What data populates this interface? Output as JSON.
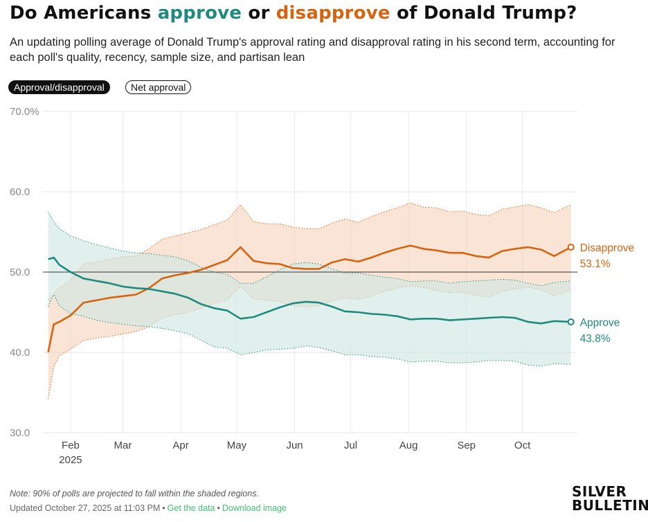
{
  "header": {
    "title_parts": {
      "part1": "Do Americans ",
      "approve": "approve",
      "part2": " or ",
      "disapprove": "disapprove",
      "part3": " of Donald Trump?"
    },
    "subtitle": "An updating polling average of Donald Trump's approval rating and disapproval rating in his second term, accounting for each poll's quality, recency, sample size, and partisan lean"
  },
  "toggles": {
    "approval_label": "Approval/disapproval",
    "net_label": "Net approval",
    "active": "approval"
  },
  "colors": {
    "approve": "#1f8a7e",
    "approve_band": "#cfe6e2",
    "disapprove": "#d7630f",
    "disapprove_band": "#f6d3bb"
  },
  "chart_data": {
    "type": "line",
    "x_unit": "date",
    "xlim": [
      "2025-01-20",
      "2025-10-27"
    ],
    "ylim": [
      30,
      70
    ],
    "y_ticks": [
      30,
      40,
      50,
      60,
      70
    ],
    "y_tick_labels": [
      "30.0",
      "40.0",
      "50.0",
      "60.0",
      "70.0%"
    ],
    "reference_line": 50,
    "grid": true,
    "x_ticks": [
      {
        "date": "2025-02-01",
        "label": "Feb",
        "sublabel": "2025"
      },
      {
        "date": "2025-03-01",
        "label": "Mar"
      },
      {
        "date": "2025-04-01",
        "label": "Apr"
      },
      {
        "date": "2025-05-01",
        "label": "May"
      },
      {
        "date": "2025-06-01",
        "label": "Jun"
      },
      {
        "date": "2025-07-01",
        "label": "Jul"
      },
      {
        "date": "2025-08-01",
        "label": "Aug"
      },
      {
        "date": "2025-09-01",
        "label": "Sep"
      },
      {
        "date": "2025-10-01",
        "label": "Oct"
      }
    ],
    "series": [
      {
        "name": "Approve",
        "end_label": "Approve",
        "end_value_label": "43.8%",
        "x": [
          "2025-01-20",
          "2025-01-23",
          "2025-01-26",
          "2025-02-01",
          "2025-02-08",
          "2025-02-15",
          "2025-02-22",
          "2025-03-01",
          "2025-03-08",
          "2025-03-15",
          "2025-03-22",
          "2025-03-29",
          "2025-04-05",
          "2025-04-12",
          "2025-04-19",
          "2025-04-26",
          "2025-05-03",
          "2025-05-10",
          "2025-05-17",
          "2025-05-24",
          "2025-05-31",
          "2025-06-07",
          "2025-06-14",
          "2025-06-21",
          "2025-06-28",
          "2025-07-05",
          "2025-07-12",
          "2025-07-19",
          "2025-07-26",
          "2025-08-02",
          "2025-08-09",
          "2025-08-16",
          "2025-08-23",
          "2025-08-30",
          "2025-09-06",
          "2025-09-13",
          "2025-09-20",
          "2025-09-27",
          "2025-10-04",
          "2025-10-11",
          "2025-10-18",
          "2025-10-27"
        ],
        "y": [
          51.6,
          51.8,
          50.9,
          50.0,
          49.2,
          48.9,
          48.6,
          48.2,
          48.0,
          47.9,
          47.6,
          47.3,
          46.8,
          46.0,
          45.5,
          45.2,
          44.2,
          44.4,
          45.0,
          45.6,
          46.1,
          46.3,
          46.2,
          45.7,
          45.1,
          45.0,
          44.8,
          44.7,
          44.5,
          44.1,
          44.2,
          44.2,
          44.0,
          44.1,
          44.2,
          44.3,
          44.4,
          44.3,
          43.8,
          43.6,
          43.9,
          43.8
        ],
        "lower": [
          45.7,
          47.2,
          45.8,
          44.8,
          44.5,
          44.0,
          43.7,
          43.5,
          43.3,
          43.2,
          43.0,
          42.7,
          42.3,
          41.5,
          40.7,
          40.5,
          39.7,
          40.0,
          40.3,
          40.4,
          40.5,
          40.8,
          40.6,
          40.2,
          39.7,
          39.7,
          39.5,
          39.4,
          39.2,
          38.8,
          38.9,
          38.9,
          38.7,
          38.7,
          38.8,
          39.0,
          39.0,
          38.9,
          38.4,
          38.3,
          38.6,
          38.5
        ],
        "upper": [
          57.5,
          56.3,
          55.4,
          54.5,
          53.9,
          53.4,
          53.0,
          52.6,
          52.4,
          52.3,
          52.1,
          51.9,
          51.4,
          50.6,
          50.0,
          49.7,
          48.6,
          48.6,
          49.4,
          50.3,
          51.0,
          51.2,
          51.0,
          50.4,
          49.9,
          49.9,
          49.6,
          49.4,
          49.2,
          48.8,
          48.9,
          48.9,
          48.6,
          48.8,
          48.9,
          49.0,
          49.1,
          49.0,
          48.6,
          48.3,
          48.7,
          48.9
        ]
      },
      {
        "name": "Disapprove",
        "end_label": "Disapprove",
        "end_value_label": "53.1%",
        "x": [
          "2025-01-20",
          "2025-01-23",
          "2025-01-26",
          "2025-02-01",
          "2025-02-08",
          "2025-02-15",
          "2025-02-22",
          "2025-03-01",
          "2025-03-08",
          "2025-03-15",
          "2025-03-22",
          "2025-03-29",
          "2025-04-05",
          "2025-04-12",
          "2025-04-19",
          "2025-04-26",
          "2025-05-03",
          "2025-05-10",
          "2025-05-17",
          "2025-05-24",
          "2025-05-31",
          "2025-06-07",
          "2025-06-14",
          "2025-06-21",
          "2025-06-28",
          "2025-07-05",
          "2025-07-12",
          "2025-07-19",
          "2025-07-26",
          "2025-08-02",
          "2025-08-09",
          "2025-08-16",
          "2025-08-23",
          "2025-08-30",
          "2025-09-06",
          "2025-09-13",
          "2025-09-20",
          "2025-09-27",
          "2025-10-04",
          "2025-10-11",
          "2025-10-18",
          "2025-10-27"
        ],
        "y": [
          40.0,
          43.5,
          43.8,
          44.6,
          46.2,
          46.5,
          46.8,
          47.0,
          47.2,
          48.0,
          49.2,
          49.6,
          49.9,
          50.3,
          50.9,
          51.5,
          53.1,
          51.4,
          51.1,
          51.0,
          50.5,
          50.4,
          50.4,
          51.2,
          51.6,
          51.3,
          51.8,
          52.4,
          52.9,
          53.3,
          52.9,
          52.7,
          52.4,
          52.4,
          52.0,
          51.8,
          52.6,
          52.9,
          53.1,
          52.8,
          52.0,
          53.1
        ],
        "lower": [
          34.2,
          38.2,
          39.6,
          40.4,
          41.5,
          41.8,
          42.0,
          42.3,
          42.6,
          43.2,
          44.3,
          44.7,
          45.0,
          45.5,
          46.1,
          46.6,
          48.2,
          46.7,
          46.5,
          46.3,
          45.8,
          45.7,
          45.8,
          46.4,
          46.8,
          46.6,
          47.0,
          47.6,
          48.0,
          48.3,
          48.1,
          47.7,
          47.4,
          47.5,
          47.1,
          46.9,
          47.6,
          47.9,
          48.1,
          47.8,
          47.0,
          47.8
        ],
        "upper": [
          46.5,
          47.3,
          48.0,
          49.0,
          51.0,
          51.3,
          51.6,
          51.9,
          52.0,
          52.9,
          54.1,
          54.5,
          54.9,
          55.3,
          55.9,
          56.5,
          58.4,
          56.3,
          56.0,
          56.0,
          55.6,
          55.4,
          55.4,
          56.1,
          56.6,
          56.2,
          56.9,
          57.5,
          58.0,
          58.6,
          58.1,
          58.0,
          57.5,
          57.6,
          57.2,
          57.0,
          57.8,
          58.1,
          58.4,
          58.0,
          57.4,
          58.4
        ]
      }
    ]
  },
  "footer": {
    "note": "Note: 90% of polls are projected to fall within the shaded regions.",
    "updated": "Updated October 27, 2025 at 11:03 PM",
    "bullet": "•",
    "get_data": "Get the data",
    "download": "Download image"
  },
  "logo": {
    "line1": "SILVER",
    "line2": "BULLETIN"
  }
}
